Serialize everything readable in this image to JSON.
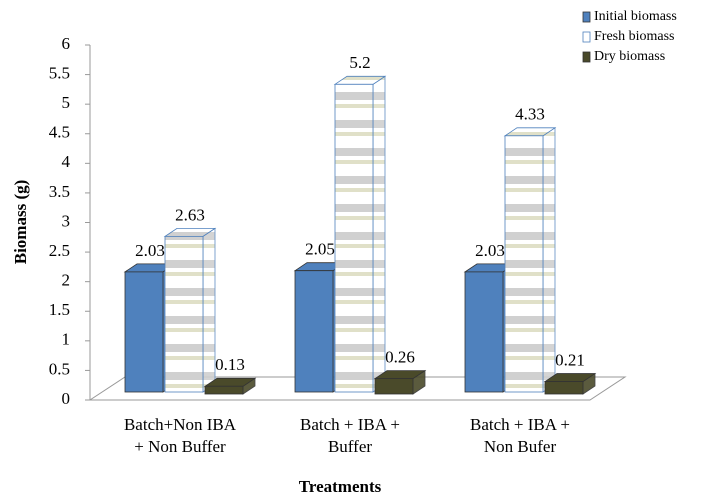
{
  "chart_data": {
    "type": "bar3d",
    "y_label": "Biomass (g)",
    "x_label": "Treatments",
    "categories": [
      "Batch+Non IBA\n+ Non Buffer",
      "Batch + IBA +\nBuffer",
      "Batch + IBA +\nNon Bufer"
    ],
    "series": [
      {
        "name": "Initial biomass",
        "color": "#4f81bd",
        "values": [
          2.03,
          2.05,
          2.03
        ]
      },
      {
        "name": "Fresh biomass",
        "color": "#c8c8c8",
        "values": [
          2.63,
          5.2,
          4.33
        ]
      },
      {
        "name": "Dry biomass",
        "color": "#4a4a2a",
        "values": [
          0.13,
          0.26,
          0.21
        ]
      }
    ],
    "ylim": [
      0,
      6
    ],
    "yticks": [
      0,
      0.5,
      1,
      1.5,
      2,
      2.5,
      3,
      3.5,
      4,
      4.5,
      5,
      5.5,
      6
    ],
    "legend": "top-right"
  }
}
